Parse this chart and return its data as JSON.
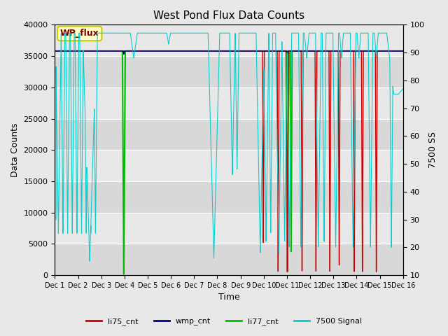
{
  "title": "West Pond Flux Data Counts",
  "xlabel": "Time",
  "ylabel_left": "Data Counts",
  "ylabel_right": "7500 SS",
  "annotation_text": "WP_flux",
  "annotation_bg": "#FFFFCC",
  "annotation_border": "#CCCC00",
  "annotation_text_color": "#800000",
  "ylim_left": [
    0,
    40000
  ],
  "ylim_right": [
    10,
    100
  ],
  "yticks_left": [
    0,
    5000,
    10000,
    15000,
    20000,
    25000,
    30000,
    35000,
    40000
  ],
  "yticks_right": [
    10,
    20,
    30,
    40,
    50,
    60,
    70,
    80,
    90,
    100
  ],
  "xtick_labels": [
    "Dec 1",
    "Dec 2",
    "Dec 3",
    "Dec 4",
    "Dec 5",
    "Dec 6",
    "Dec 7",
    "Dec 8",
    "Dec 9",
    "Dec 10",
    "Dec 11",
    "Dec 12",
    "Dec 13",
    "Dec 14",
    "Dec 15",
    "Dec 16"
  ],
  "bg_color": "#E8E8E8",
  "li75_color": "#CC0000",
  "wmp_color": "#000080",
  "li77_color": "#00BB00",
  "s7500_color": "#00CCCC",
  "base_level": 35800,
  "legend_labels": [
    "li75_cnt",
    "wmp_cnt",
    "li77_cnt",
    "7500 Signal"
  ]
}
